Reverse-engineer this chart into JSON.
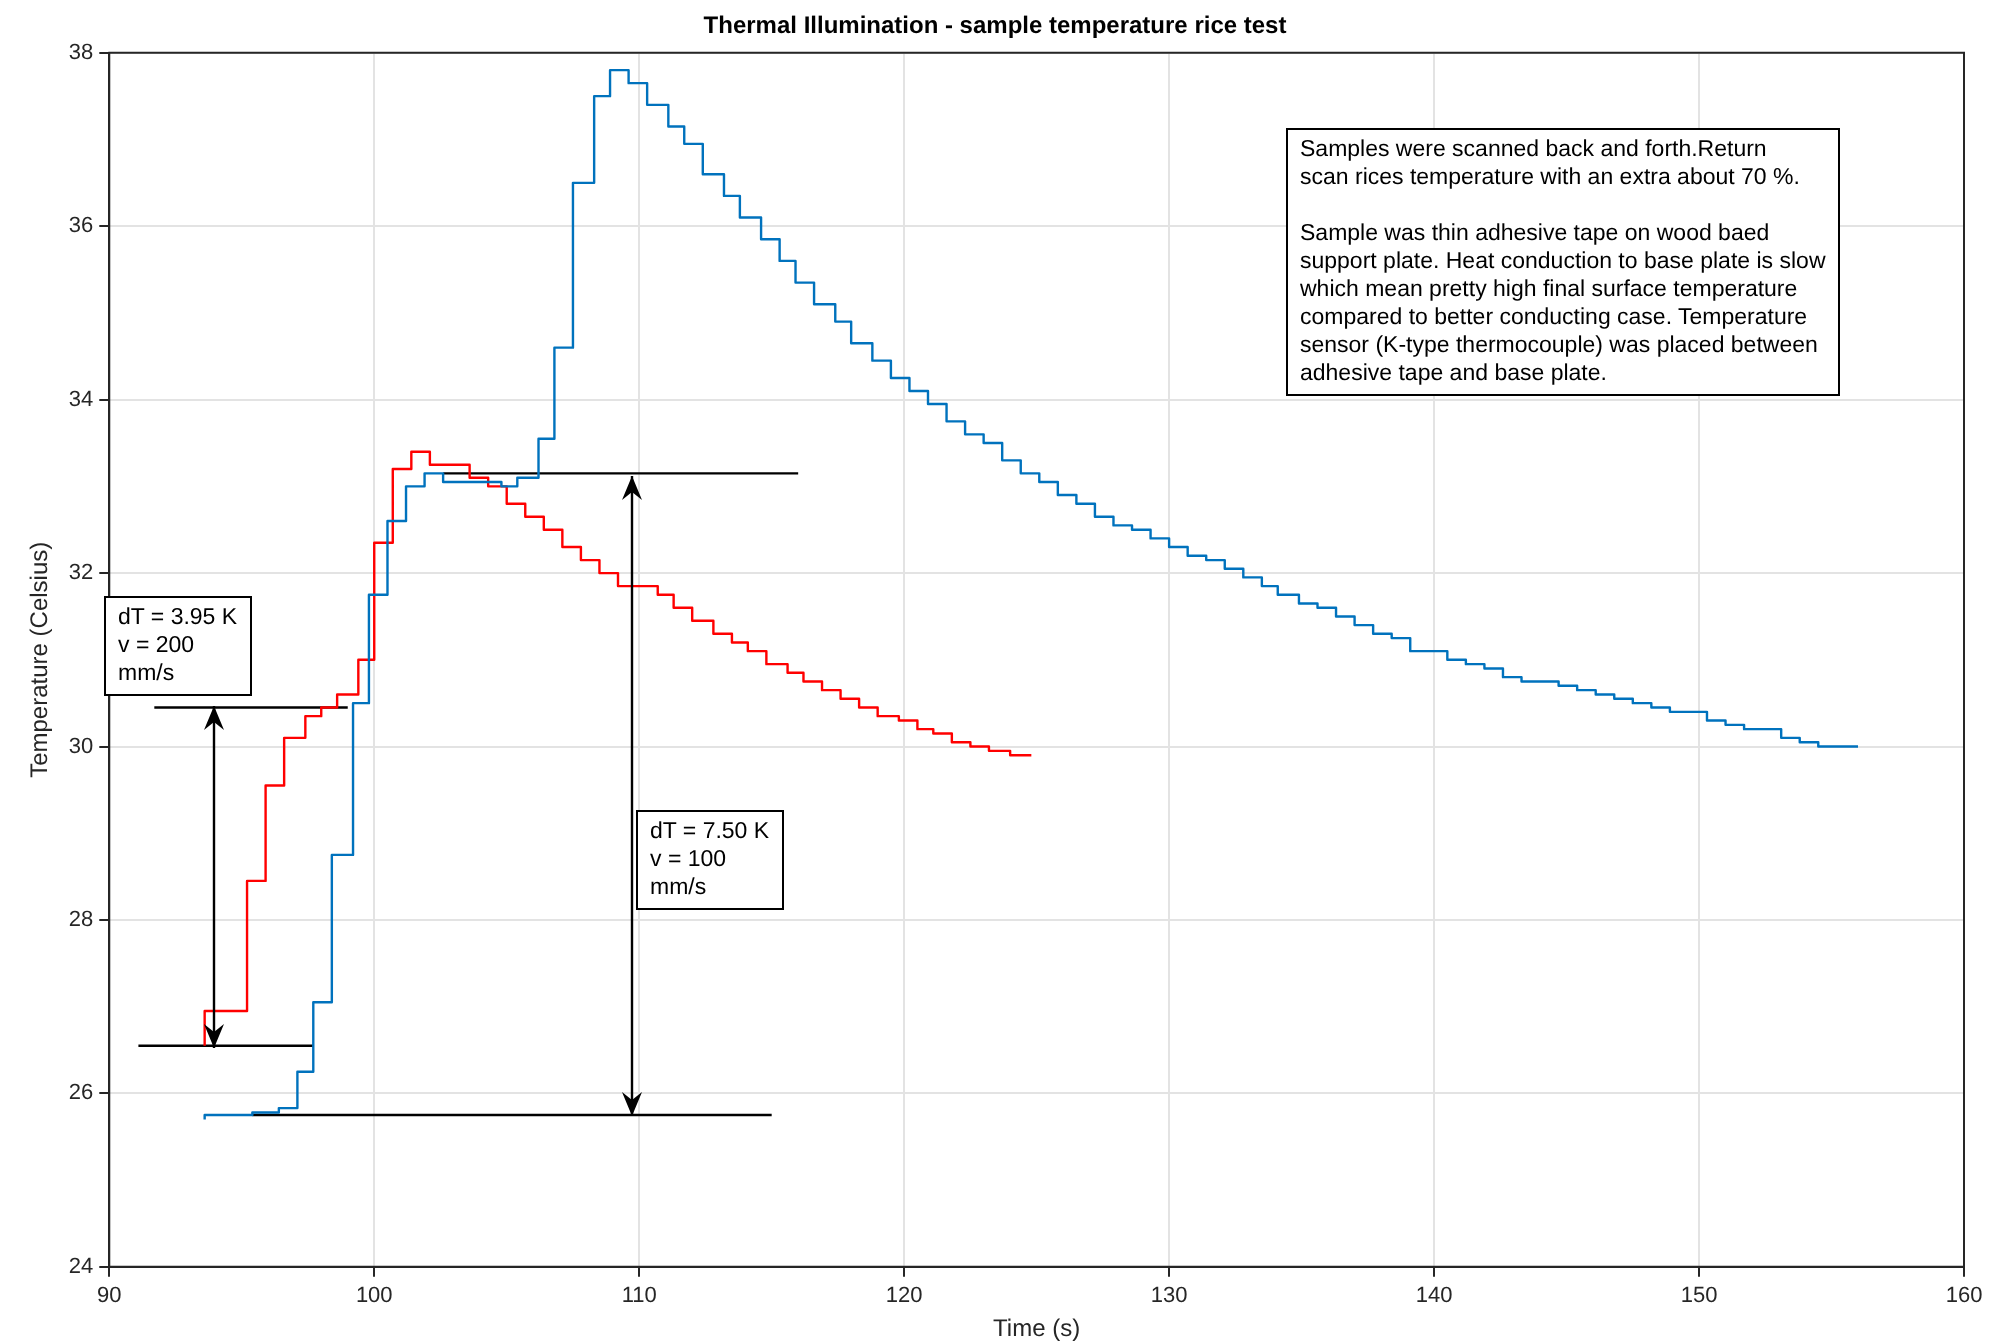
{
  "chart_data": {
    "type": "step",
    "title": "Thermal Illumination - sample temperature rice test",
    "xlabel": "Time (s)",
    "ylabel": "Temperature (Celsius)",
    "xlim": [
      90,
      160
    ],
    "xticks": [
      90,
      100,
      110,
      120,
      130,
      140,
      150,
      160
    ],
    "ylim": [
      24,
      38
    ],
    "yticks": [
      24,
      26,
      28,
      30,
      32,
      34,
      36,
      38
    ],
    "grid": true,
    "marker": "none",
    "series": [
      {
        "color": "#0072bd",
        "x": [
          93.6,
          95.4,
          96.4,
          97.1,
          97.7,
          98.4,
          99.2,
          99.8,
          100.5,
          101.2,
          101.9,
          102.6,
          104.8,
          105.4,
          106.2,
          106.8,
          107.5,
          108.3,
          108.9,
          109.6,
          110.3,
          111.1,
          111.7,
          112.4,
          113.2,
          113.8,
          114.6,
          115.3,
          115.9,
          116.6,
          117.4,
          118.0,
          118.8,
          119.5,
          120.2,
          120.9,
          121.6,
          122.3,
          123.0,
          123.7,
          124.4,
          125.1,
          125.8,
          126.5,
          127.2,
          127.9,
          128.6,
          129.3,
          130.0,
          130.7,
          131.4,
          132.1,
          132.8,
          133.5,
          134.1,
          134.9,
          135.6,
          136.3,
          137.0,
          137.7,
          138.4,
          139.1,
          140.5,
          141.2,
          141.9,
          142.6,
          143.3,
          144.7,
          145.4,
          146.1,
          146.8,
          147.5,
          148.2,
          148.9,
          150.3,
          151.0,
          151.7,
          153.1,
          153.8,
          154.5,
          155.2,
          156.0
        ],
        "values": [
          25.7,
          25.75,
          25.78,
          25.83,
          26.25,
          27.05,
          28.75,
          30.5,
          31.75,
          32.6,
          33.0,
          33.15,
          33.05,
          33.0,
          33.1,
          33.55,
          34.6,
          36.5,
          37.5,
          37.8,
          37.65,
          37.4,
          37.15,
          36.95,
          36.6,
          36.35,
          36.1,
          35.85,
          35.6,
          35.35,
          35.1,
          34.9,
          34.65,
          34.45,
          34.25,
          34.1,
          33.95,
          33.75,
          33.6,
          33.5,
          33.3,
          33.15,
          33.05,
          32.9,
          32.8,
          32.65,
          32.55,
          32.5,
          32.4,
          32.3,
          32.2,
          32.15,
          32.05,
          31.95,
          31.85,
          31.75,
          31.65,
          31.6,
          31.5,
          31.4,
          31.3,
          31.25,
          31.1,
          31.0,
          30.95,
          30.9,
          30.8,
          30.75,
          30.7,
          30.65,
          30.6,
          30.55,
          30.5,
          30.45,
          30.4,
          30.3,
          30.25,
          30.2,
          30.1,
          30.05,
          30.0,
          30.0
        ]
      },
      {
        "color": "#ff0000",
        "x": [
          93.6,
          95.2,
          95.9,
          96.6,
          97.4,
          98.0,
          98.6,
          99.4,
          100.0,
          100.7,
          101.4,
          102.1,
          103.6,
          104.3,
          105.0,
          105.7,
          106.4,
          107.1,
          107.8,
          108.5,
          109.2,
          109.9,
          110.7,
          111.3,
          112.0,
          112.8,
          113.5,
          114.1,
          114.8,
          115.6,
          116.2,
          116.9,
          117.6,
          118.3,
          119.0,
          119.8,
          120.5,
          121.1,
          121.8,
          122.5,
          123.2,
          124.0,
          124.8
        ],
        "values": [
          26.55,
          26.95,
          28.45,
          29.55,
          30.1,
          30.35,
          30.45,
          30.6,
          31.0,
          32.35,
          33.2,
          33.4,
          33.25,
          33.1,
          33.0,
          32.8,
          32.65,
          32.5,
          32.3,
          32.15,
          32.0,
          31.85,
          31.85,
          31.75,
          31.6,
          31.45,
          31.3,
          31.2,
          31.1,
          30.95,
          30.85,
          30.75,
          30.65,
          30.55,
          30.45,
          30.35,
          30.3,
          30.2,
          30.15,
          30.05,
          30.0,
          29.95,
          29.9
        ]
      },
      {
        "type": "line",
        "color": "#000000",
        "x": [
          91.7,
          99.0
        ],
        "values": [
          30.45,
          30.45
        ]
      },
      {
        "type": "line",
        "color": "#000000",
        "x": [
          91.1,
          97.7
        ],
        "values": [
          26.55,
          26.55
        ]
      },
      {
        "type": "line",
        "color": "#000000",
        "x": [
          102.6,
          116.0
        ],
        "values": [
          33.15,
          33.15
        ]
      },
      {
        "type": "line",
        "color": "#000000",
        "x": [
          95.4,
          115.0
        ],
        "values": [
          25.75,
          25.75
        ]
      }
    ],
    "annotations": [
      "dT = 3.95 K\nv = 200\nmm/s",
      "dT = 7.50 K\nv = 100\nmm/s",
      "Samples were scanned back and forth.Return\nscan rices temperature with an extra about 70 %.\n\nSample was thin adhesive tape on wood baed\nsupport plate. Heat conduction to base plate is slow\nwhich mean pretty high final surface temperature\ncompared to better conducting case. Temperature\nsensor (K-type thermocouple) was placed between\nadhesive tape and base plate."
    ]
  }
}
